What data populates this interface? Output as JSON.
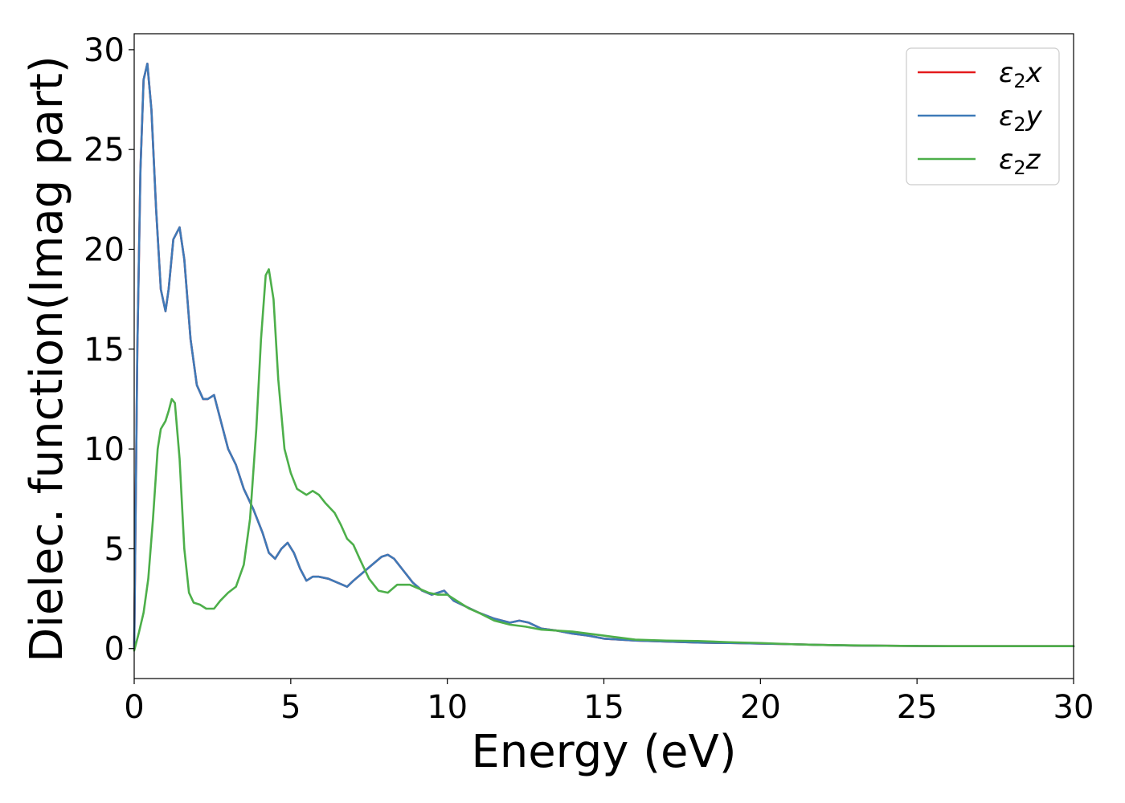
{
  "chart_data": {
    "type": "line",
    "xlabel": "Energy (eV)",
    "ylabel": "Dielec. function(Imag part)",
    "xlim": [
      0,
      30
    ],
    "ylim": [
      -1.5,
      30.8
    ],
    "xticks": [
      "0",
      "5",
      "10",
      "15",
      "20",
      "25",
      "30"
    ],
    "yticks": [
      "0",
      "5",
      "10",
      "15",
      "20",
      "25",
      "30"
    ],
    "grid": false,
    "legend_position": "top-right",
    "series": [
      {
        "name": "ε2x",
        "legend_base": "ε",
        "legend_sub": "2",
        "legend_suffix": "x",
        "color": "#e41a1c",
        "x": [
          0,
          0.1,
          0.2,
          0.3,
          0.42,
          0.55,
          0.7,
          0.85,
          1.0,
          1.1,
          1.25,
          1.45,
          1.6,
          1.8,
          2.0,
          2.2,
          2.35,
          2.55,
          2.75,
          3.0,
          3.25,
          3.5,
          3.8,
          4.1,
          4.3,
          4.5,
          4.7,
          4.9,
          5.1,
          5.3,
          5.5,
          5.7,
          5.9,
          6.2,
          6.5,
          6.8,
          7.0,
          7.3,
          7.6,
          7.9,
          8.1,
          8.3,
          8.6,
          8.9,
          9.2,
          9.5,
          9.7,
          9.9,
          10.2,
          10.6,
          11.0,
          11.5,
          12.0,
          12.3,
          12.6,
          13.0,
          13.5,
          14.0,
          14.5,
          15.0,
          16.0,
          17.0,
          18.0,
          19.0,
          20.0,
          21.0,
          22.0,
          23.0,
          24.0,
          25.0,
          26.0,
          27.0,
          28.0,
          29.0,
          30.0
        ],
        "y": [
          0,
          15,
          24,
          28.5,
          29.3,
          27,
          22,
          18,
          16.9,
          18,
          20.5,
          21.1,
          19.5,
          15.5,
          13.2,
          12.5,
          12.5,
          12.7,
          11.5,
          10,
          9.2,
          8.0,
          7.0,
          5.8,
          4.8,
          4.5,
          5.0,
          5.3,
          4.8,
          4.0,
          3.4,
          3.6,
          3.6,
          3.5,
          3.3,
          3.1,
          3.4,
          3.8,
          4.2,
          4.6,
          4.7,
          4.5,
          3.9,
          3.3,
          2.9,
          2.7,
          2.8,
          2.9,
          2.4,
          2.1,
          1.8,
          1.5,
          1.3,
          1.4,
          1.3,
          1.0,
          0.9,
          0.75,
          0.65,
          0.5,
          0.4,
          0.35,
          0.3,
          0.28,
          0.25,
          0.22,
          0.18,
          0.15,
          0.14,
          0.13,
          0.12,
          0.12,
          0.12,
          0.12,
          0.12
        ]
      },
      {
        "name": "ε2y",
        "legend_base": "ε",
        "legend_sub": "2",
        "legend_suffix": "y",
        "color": "#3e7ab8",
        "x": [
          0,
          0.1,
          0.2,
          0.3,
          0.42,
          0.55,
          0.7,
          0.85,
          1.0,
          1.1,
          1.25,
          1.45,
          1.6,
          1.8,
          2.0,
          2.2,
          2.35,
          2.55,
          2.75,
          3.0,
          3.25,
          3.5,
          3.8,
          4.1,
          4.3,
          4.5,
          4.7,
          4.9,
          5.1,
          5.3,
          5.5,
          5.7,
          5.9,
          6.2,
          6.5,
          6.8,
          7.0,
          7.3,
          7.6,
          7.9,
          8.1,
          8.3,
          8.6,
          8.9,
          9.2,
          9.5,
          9.7,
          9.9,
          10.2,
          10.6,
          11.0,
          11.5,
          12.0,
          12.3,
          12.6,
          13.0,
          13.5,
          14.0,
          14.5,
          15.0,
          16.0,
          17.0,
          18.0,
          19.0,
          20.0,
          21.0,
          22.0,
          23.0,
          24.0,
          25.0,
          26.0,
          27.0,
          28.0,
          29.0,
          30.0
        ],
        "y": [
          0,
          15,
          24,
          28.5,
          29.3,
          27,
          22,
          18,
          16.9,
          18,
          20.5,
          21.1,
          19.5,
          15.5,
          13.2,
          12.5,
          12.5,
          12.7,
          11.5,
          10,
          9.2,
          8.0,
          7.0,
          5.8,
          4.8,
          4.5,
          5.0,
          5.3,
          4.8,
          4.0,
          3.4,
          3.6,
          3.6,
          3.5,
          3.3,
          3.1,
          3.4,
          3.8,
          4.2,
          4.6,
          4.7,
          4.5,
          3.9,
          3.3,
          2.9,
          2.7,
          2.8,
          2.9,
          2.4,
          2.1,
          1.8,
          1.5,
          1.3,
          1.4,
          1.3,
          1.0,
          0.9,
          0.75,
          0.65,
          0.5,
          0.4,
          0.35,
          0.3,
          0.28,
          0.25,
          0.22,
          0.18,
          0.15,
          0.14,
          0.13,
          0.12,
          0.12,
          0.12,
          0.12,
          0.12
        ]
      },
      {
        "name": "ε2z",
        "legend_base": "ε",
        "legend_sub": "2",
        "legend_suffix": "z",
        "color": "#4daf4a",
        "x": [
          0,
          0.15,
          0.3,
          0.45,
          0.6,
          0.75,
          0.85,
          1.0,
          1.1,
          1.2,
          1.3,
          1.45,
          1.6,
          1.75,
          1.9,
          2.1,
          2.3,
          2.55,
          2.75,
          3.0,
          3.25,
          3.5,
          3.7,
          3.9,
          4.05,
          4.2,
          4.3,
          4.45,
          4.6,
          4.8,
          5.0,
          5.2,
          5.5,
          5.7,
          5.9,
          6.1,
          6.4,
          6.6,
          6.8,
          7.0,
          7.2,
          7.5,
          7.8,
          8.1,
          8.4,
          8.8,
          9.1,
          9.4,
          9.7,
          10.0,
          10.3,
          10.7,
          11.0,
          11.5,
          12.0,
          12.5,
          13.0,
          13.5,
          14.0,
          14.5,
          15.0,
          15.5,
          16.0,
          17.0,
          18.0,
          19.0,
          20.0,
          21.0,
          22.0,
          23.0,
          24.0,
          25.0,
          26.0,
          27.0,
          28.0,
          29.0,
          30.0
        ],
        "y": [
          -0.1,
          0.8,
          1.8,
          3.5,
          6.5,
          10.0,
          11.0,
          11.4,
          11.9,
          12.5,
          12.3,
          9.5,
          5.0,
          2.8,
          2.3,
          2.2,
          2.0,
          2.0,
          2.4,
          2.8,
          3.1,
          4.2,
          6.5,
          11.0,
          15.5,
          18.7,
          19.0,
          17.5,
          13.5,
          10.0,
          8.8,
          8.0,
          7.7,
          7.9,
          7.7,
          7.3,
          6.8,
          6.2,
          5.5,
          5.2,
          4.5,
          3.5,
          2.9,
          2.8,
          3.2,
          3.2,
          3.0,
          2.8,
          2.7,
          2.7,
          2.4,
          2.0,
          1.8,
          1.4,
          1.2,
          1.1,
          0.95,
          0.9,
          0.85,
          0.75,
          0.65,
          0.55,
          0.45,
          0.4,
          0.38,
          0.32,
          0.28,
          0.22,
          0.18,
          0.16,
          0.14,
          0.13,
          0.12,
          0.12,
          0.12,
          0.12,
          0.12
        ]
      }
    ]
  }
}
